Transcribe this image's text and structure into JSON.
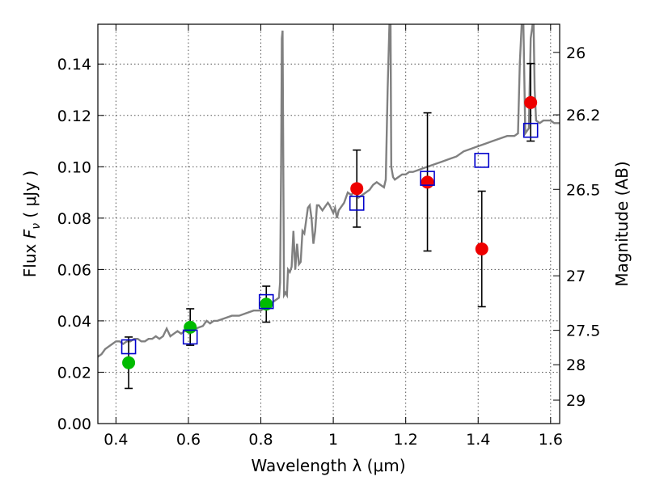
{
  "chart_data": {
    "type": "scatter",
    "title": "",
    "xlabel": "Wavelength  λ (μm)",
    "ylabel_parts": {
      "pre": "Flux  ",
      "symbol": "F",
      "sub": "ν",
      "post": "  (  μJy )"
    },
    "y2label": "Magnitude (AB)",
    "xlim": [
      0.35,
      1.625
    ],
    "ylim": [
      0.0,
      0.1555
    ],
    "grid": true,
    "x_ticks": [
      {
        "value": 0.4,
        "label": "0.4"
      },
      {
        "value": 0.6,
        "label": "0.6"
      },
      {
        "value": 0.8,
        "label": "0.8"
      },
      {
        "value": 1.0,
        "label": "1"
      },
      {
        "value": 1.2,
        "label": "1.2"
      },
      {
        "value": 1.4,
        "label": "1.4"
      },
      {
        "value": 1.6,
        "label": "1.6"
      }
    ],
    "y_ticks": [
      {
        "value": 0.0,
        "label": "0.00"
      },
      {
        "value": 0.02,
        "label": "0.02"
      },
      {
        "value": 0.04,
        "label": "0.04"
      },
      {
        "value": 0.06,
        "label": "0.06"
      },
      {
        "value": 0.08,
        "label": "0.08"
      },
      {
        "value": 0.1,
        "label": "0.10"
      },
      {
        "value": 0.12,
        "label": "0.12"
      },
      {
        "value": 0.14,
        "label": "0.14"
      }
    ],
    "y2_ticks": [
      {
        "value": 26,
        "label": "26"
      },
      {
        "value": 26.2,
        "label": "26.2"
      },
      {
        "value": 26.5,
        "label": "26.5"
      },
      {
        "value": 27,
        "label": "27"
      },
      {
        "value": 27.5,
        "label": "27.5"
      },
      {
        "value": 28,
        "label": "28"
      },
      {
        "value": 29,
        "label": "29"
      }
    ],
    "colors": {
      "model": "#808080",
      "green": "#00bb00",
      "red": "#ee0000",
      "box": "#0000cc",
      "error": "#000000",
      "grid": "#555555"
    },
    "model_spectrum": {
      "x": [
        0.35,
        0.36,
        0.37,
        0.38,
        0.39,
        0.4,
        0.41,
        0.42,
        0.43,
        0.44,
        0.45,
        0.46,
        0.47,
        0.48,
        0.49,
        0.5,
        0.51,
        0.52,
        0.53,
        0.54,
        0.55,
        0.56,
        0.57,
        0.58,
        0.59,
        0.6,
        0.62,
        0.64,
        0.65,
        0.66,
        0.67,
        0.68,
        0.7,
        0.72,
        0.74,
        0.76,
        0.78,
        0.8,
        0.81,
        0.82,
        0.83,
        0.84,
        0.85,
        0.853,
        0.856,
        0.858,
        0.86,
        0.862,
        0.864,
        0.868,
        0.872,
        0.875,
        0.88,
        0.885,
        0.89,
        0.895,
        0.9,
        0.905,
        0.91,
        0.915,
        0.92,
        0.93,
        0.935,
        0.94,
        0.945,
        0.95,
        0.955,
        0.96,
        0.97,
        0.98,
        0.985,
        0.99,
        1.0,
        1.005,
        1.01,
        1.015,
        1.02,
        1.03,
        1.04,
        1.05,
        1.06,
        1.07,
        1.08,
        1.09,
        1.1,
        1.11,
        1.12,
        1.13,
        1.14,
        1.145,
        1.15,
        1.155,
        1.158,
        1.16,
        1.165,
        1.17,
        1.18,
        1.19,
        1.2,
        1.21,
        1.22,
        1.24,
        1.26,
        1.28,
        1.3,
        1.32,
        1.34,
        1.36,
        1.38,
        1.4,
        1.42,
        1.44,
        1.46,
        1.48,
        1.5,
        1.51,
        1.515,
        1.52,
        1.525,
        1.53,
        1.535,
        1.54,
        1.545,
        1.55,
        1.553,
        1.556,
        1.56,
        1.57,
        1.58,
        1.59,
        1.6,
        1.61,
        1.625
      ],
      "y": [
        0.026,
        0.027,
        0.029,
        0.03,
        0.031,
        0.032,
        0.032,
        0.031,
        0.032,
        0.032,
        0.033,
        0.033,
        0.032,
        0.032,
        0.033,
        0.033,
        0.034,
        0.033,
        0.034,
        0.037,
        0.034,
        0.035,
        0.036,
        0.035,
        0.036,
        0.036,
        0.037,
        0.038,
        0.04,
        0.039,
        0.04,
        0.04,
        0.041,
        0.042,
        0.042,
        0.043,
        0.044,
        0.044,
        0.045,
        0.046,
        0.047,
        0.048,
        0.049,
        0.055,
        0.1,
        0.15,
        0.153,
        0.1,
        0.05,
        0.051,
        0.05,
        0.06,
        0.059,
        0.061,
        0.075,
        0.06,
        0.07,
        0.062,
        0.063,
        0.075,
        0.074,
        0.084,
        0.085,
        0.08,
        0.07,
        0.075,
        0.085,
        0.085,
        0.083,
        0.085,
        0.086,
        0.085,
        0.082,
        0.084,
        0.08,
        0.083,
        0.084,
        0.086,
        0.09,
        0.089,
        0.091,
        0.088,
        0.089,
        0.09,
        0.091,
        0.093,
        0.094,
        0.093,
        0.092,
        0.095,
        0.13,
        0.155,
        0.155,
        0.1,
        0.096,
        0.095,
        0.096,
        0.097,
        0.097,
        0.098,
        0.098,
        0.099,
        0.1,
        0.101,
        0.102,
        0.103,
        0.104,
        0.106,
        0.107,
        0.108,
        0.109,
        0.11,
        0.111,
        0.112,
        0.112,
        0.113,
        0.14,
        0.155,
        0.155,
        0.113,
        0.114,
        0.115,
        0.15,
        0.155,
        0.155,
        0.13,
        0.118,
        0.117,
        0.118,
        0.118,
        0.118,
        0.117,
        0.117
      ]
    },
    "green_points": [
      {
        "x": 0.435,
        "y": 0.0237,
        "yerr_low": 0.0137,
        "yerr_high": 0.0337
      },
      {
        "x": 0.605,
        "y": 0.0375,
        "yerr_low": 0.0305,
        "yerr_high": 0.0447
      },
      {
        "x": 0.815,
        "y": 0.0465,
        "yerr_low": 0.0395,
        "yerr_high": 0.0535
      }
    ],
    "red_points": [
      {
        "x": 1.065,
        "y": 0.0915,
        "yerr_low": 0.0765,
        "yerr_high": 0.1065
      },
      {
        "x": 1.26,
        "y": 0.094,
        "yerr_low": 0.0672,
        "yerr_high": 0.121
      },
      {
        "x": 1.41,
        "y": 0.068,
        "yerr_low": 0.0455,
        "yerr_high": 0.0905
      },
      {
        "x": 1.545,
        "y": 0.125,
        "yerr_low": 0.11,
        "yerr_high": 0.1402
      }
    ],
    "model_boxes": [
      {
        "x": 0.435,
        "y": 0.0299
      },
      {
        "x": 0.605,
        "y": 0.0337
      },
      {
        "x": 0.815,
        "y": 0.0475
      },
      {
        "x": 1.065,
        "y": 0.0858
      },
      {
        "x": 1.26,
        "y": 0.0955
      },
      {
        "x": 1.41,
        "y": 0.1025
      },
      {
        "x": 1.545,
        "y": 0.1142
      }
    ]
  }
}
